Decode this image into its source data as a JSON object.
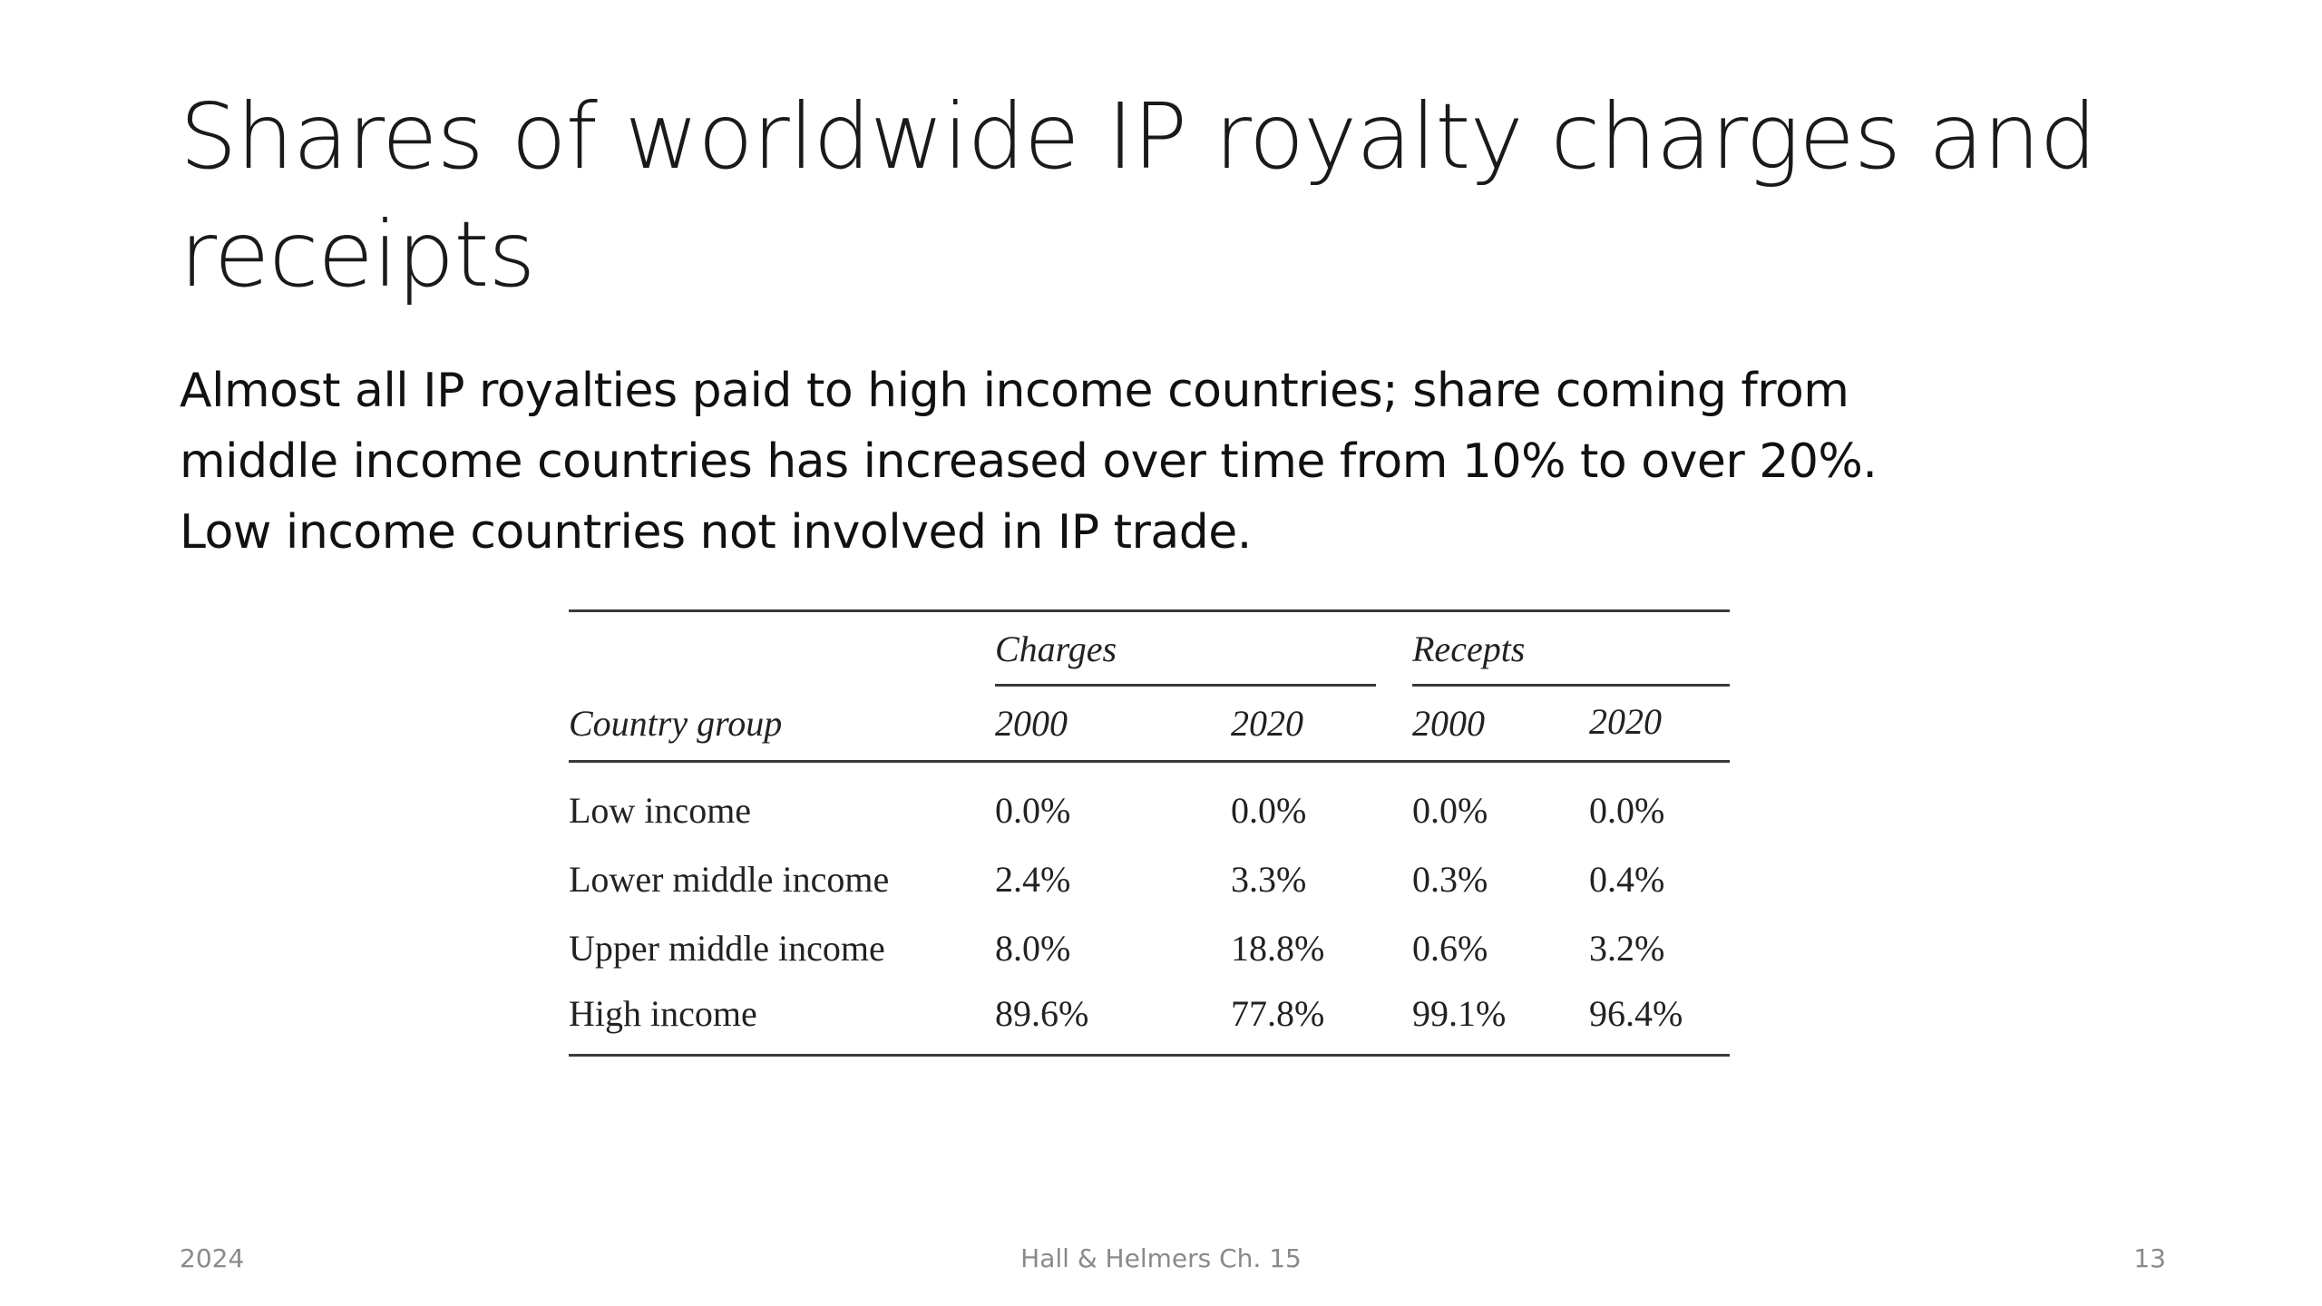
{
  "slide": {
    "title": "Shares of worldwide IP royalty charges and receipts",
    "body_lines": [
      "Almost all IP royalties paid to high income countries; share coming from",
      "middle income countries has increased over time from 10% to over 20%.",
      "Low income countries not involved in IP trade."
    ]
  },
  "table": {
    "groups": [
      "Charges",
      "Recepts"
    ],
    "row_header": "Country group",
    "years": [
      "2000",
      "2020",
      "2000",
      "2020"
    ],
    "rows": [
      {
        "label": "Low income",
        "values": [
          "0.0%",
          "0.0%",
          "0.0%",
          "0.0%"
        ]
      },
      {
        "label": "Lower middle income",
        "values": [
          "2.4%",
          "3.3%",
          "0.3%",
          "0.4%"
        ]
      },
      {
        "label": "Upper middle income",
        "values": [
          "8.0%",
          "18.8%",
          "0.6%",
          "3.2%"
        ]
      },
      {
        "label": "High income",
        "values": [
          "89.6%",
          "77.8%",
          "99.1%",
          "96.4%"
        ]
      }
    ]
  },
  "footer": {
    "date": "2024",
    "source": "Hall & Helmers Ch. 15",
    "page": "13"
  }
}
